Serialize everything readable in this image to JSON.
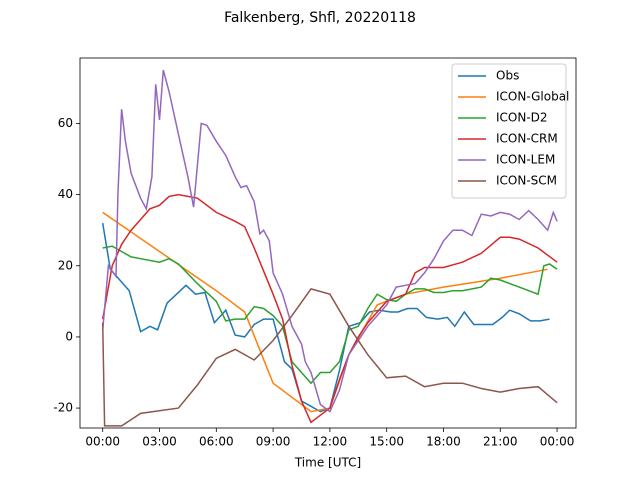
{
  "chart_data": {
    "type": "line",
    "title": "Falkenberg, Shfl, 20220118",
    "xlabel": "Time [UTC]",
    "xlim": [
      -1.2,
      25.0
    ],
    "ylim": [
      -25.6,
      78.4
    ],
    "xticks": [
      {
        "value": 0,
        "label": "00:00"
      },
      {
        "value": 3,
        "label": "03:00"
      },
      {
        "value": 6,
        "label": "06:00"
      },
      {
        "value": 9,
        "label": "09:00"
      },
      {
        "value": 12,
        "label": "12:00"
      },
      {
        "value": 15,
        "label": "15:00"
      },
      {
        "value": 18,
        "label": "18:00"
      },
      {
        "value": 21,
        "label": "21:00"
      },
      {
        "value": 24,
        "label": "00:00"
      }
    ],
    "yticks": [
      -20,
      0,
      20,
      40,
      60
    ],
    "legend": "upper right",
    "series": [
      {
        "name": "Obs",
        "color": "#1f77b4",
        "x": [
          0,
          0.4,
          0.9,
          1.4,
          2,
          2.5,
          2.9,
          3.4,
          4.4,
          4.9,
          5.4,
          5.9,
          6.5,
          7,
          7.5,
          8,
          8.5,
          9,
          9.6,
          10,
          10.5,
          11,
          11.5,
          12,
          12.5,
          13,
          13.6,
          14.1,
          14.6,
          15.2,
          15.6,
          16.1,
          16.6,
          17.1,
          17.7,
          18.2,
          18.6,
          19.1,
          19.6,
          20.6,
          21.1,
          21.5,
          22,
          22.6,
          23.1,
          23.6
        ],
        "values": [
          32,
          19,
          16,
          13,
          1.5,
          3,
          2,
          9.5,
          14.5,
          12,
          12.5,
          4,
          7.5,
          0.5,
          0,
          3.5,
          5,
          5,
          -7,
          -9,
          -18,
          -19.5,
          -21,
          -20,
          -9.5,
          3,
          4,
          7,
          7.5,
          7,
          7,
          8,
          8,
          5.5,
          5,
          5.5,
          3,
          7,
          3.5,
          3.5,
          5.5,
          7.5,
          6.5,
          4.5,
          4.5,
          5
        ]
      },
      {
        "name": "ICON-Global",
        "color": "#ff7f0e",
        "x": [
          0,
          3,
          6,
          7.5,
          9,
          11,
          12,
          13,
          14.5,
          16,
          18,
          21,
          23.5
        ],
        "values": [
          35,
          24,
          13,
          7,
          -13,
          -21,
          -20,
          -5,
          9,
          12,
          14,
          16.5,
          19
        ]
      },
      {
        "name": "ICON-D2",
        "color": "#2ca02c",
        "x": [
          0,
          0.5,
          1,
          1.5,
          2,
          3,
          3.5,
          4,
          5,
          6,
          6.5,
          7,
          7.5,
          8,
          8.5,
          9,
          9.5,
          10,
          10.5,
          11,
          11.5,
          12,
          12.5,
          13,
          13.5,
          14,
          14.5,
          15,
          15.5,
          16,
          16.5,
          17,
          17.5,
          18,
          18.5,
          19,
          20,
          20.5,
          21,
          22,
          23,
          23.3,
          23.6,
          24
        ],
        "values": [
          25,
          25.5,
          24,
          22.5,
          22,
          21,
          22,
          20.5,
          15,
          10,
          4.5,
          5,
          5,
          8.5,
          8,
          6,
          3,
          -7,
          -10,
          -13,
          -10,
          -10,
          -7,
          2,
          3,
          8,
          12,
          10.5,
          10,
          12,
          13.5,
          13.5,
          12.5,
          12.5,
          13,
          13,
          14,
          16.5,
          16,
          14,
          12,
          20,
          20.5,
          19
        ]
      },
      {
        "name": "ICON-CRM",
        "color": "#d62728",
        "x": [
          0,
          0.5,
          1,
          1.5,
          2,
          2.5,
          3,
          3.5,
          4,
          5,
          6,
          7,
          7.5,
          8,
          9,
          9.5,
          10,
          10.5,
          11,
          11.5,
          12,
          12.5,
          13,
          13.5,
          14,
          15,
          16,
          16.5,
          17,
          18,
          19,
          20,
          21,
          21.5,
          22,
          23,
          24
        ],
        "values": [
          5,
          20,
          26,
          30,
          33,
          36,
          37,
          39.5,
          40,
          39,
          35,
          32.5,
          31,
          25,
          12,
          5,
          -8,
          -18,
          -24,
          -22,
          -20,
          -12,
          -5,
          0,
          4,
          10,
          12,
          18,
          19.5,
          19.5,
          21,
          23.5,
          28,
          28,
          27.5,
          25,
          21
        ]
      },
      {
        "name": "ICON-LEM",
        "color": "#9467bd",
        "x": [
          0,
          0.3,
          0.7,
          0.8,
          1,
          1.2,
          1.5,
          2,
          2.3,
          2.6,
          2.8,
          3,
          3.2,
          3.5,
          4,
          4.5,
          4.8,
          5.2,
          5.5,
          6,
          6.5,
          7,
          7.3,
          7.6,
          8,
          8.3,
          8.5,
          8.8,
          9,
          9.5,
          10,
          10.5,
          10.7,
          11,
          11.5,
          12,
          12.5,
          13,
          14,
          15,
          15.5,
          16,
          16.5,
          17,
          17.5,
          18,
          18.5,
          19,
          19.5,
          20,
          20.5,
          21,
          21.5,
          22,
          22.5,
          23,
          23.5,
          23.8,
          24
        ],
        "values": [
          2,
          20,
          17,
          40,
          64,
          55,
          46,
          39,
          36,
          45,
          71,
          61,
          75,
          69,
          57,
          45,
          36.5,
          60,
          59.5,
          55,
          51,
          45,
          42,
          42.5,
          38,
          29,
          30,
          27,
          18,
          12,
          3,
          -2,
          -7,
          -10,
          -19,
          -21,
          -15,
          -5,
          3,
          9,
          14,
          14.5,
          15,
          18,
          22,
          27,
          30,
          30,
          28.5,
          34.5,
          34,
          35,
          34.5,
          33,
          35.5,
          33,
          30,
          35,
          32.5
        ]
      },
      {
        "name": "ICON-SCM",
        "color": "#8c564b",
        "x": [
          0,
          0.1,
          1,
          2,
          4,
          5,
          6,
          7,
          8,
          9,
          10,
          11,
          12,
          13,
          14,
          15,
          16,
          17,
          18,
          19,
          20,
          21,
          22,
          23,
          24
        ],
        "values": [
          4,
          -25,
          -25,
          -21.5,
          -20,
          -13.5,
          -6,
          -3.5,
          -6.5,
          -1,
          6,
          13.5,
          12,
          3,
          -5,
          -11.5,
          -11,
          -14,
          -13,
          -13,
          -14.5,
          -15.5,
          -14.5,
          -14,
          -18.5
        ]
      }
    ]
  }
}
